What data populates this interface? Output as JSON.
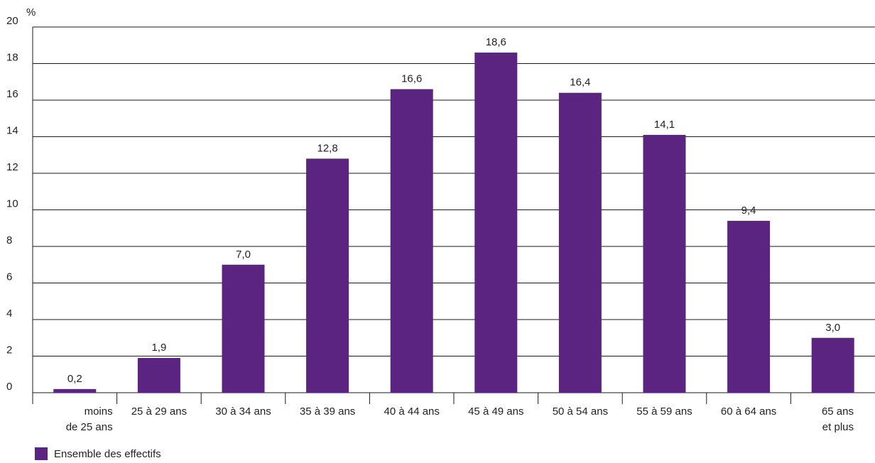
{
  "chart_data": {
    "type": "bar",
    "title": "",
    "xlabel": "",
    "ylabel": "%",
    "ylim": [
      0,
      20
    ],
    "yticks": [
      0,
      2,
      4,
      6,
      8,
      10,
      12,
      14,
      16,
      18,
      20
    ],
    "grid": true,
    "legend_position": "bottom-left",
    "categories": [
      [
        "moins",
        "de 25 ans"
      ],
      [
        "25 à 29 ans"
      ],
      [
        "30 à 34 ans"
      ],
      [
        "35 à 39 ans"
      ],
      [
        "40 à 44 ans"
      ],
      [
        "45 à 49 ans"
      ],
      [
        "50 à 54 ans"
      ],
      [
        "55 à 59 ans"
      ],
      [
        "60 à 64 ans"
      ],
      [
        "65 ans",
        "et plus"
      ]
    ],
    "series": [
      {
        "name": "Ensemble des effectifs",
        "color": "#5b2480",
        "values": [
          0.2,
          1.9,
          7.0,
          12.8,
          16.6,
          18.6,
          16.4,
          14.1,
          9.4,
          3.0
        ],
        "labels": [
          "0,2",
          "1,9",
          "7,0",
          "12,8",
          "16,6",
          "18,6",
          "16,4",
          "14,1",
          "9,4",
          "3,0"
        ]
      }
    ]
  }
}
